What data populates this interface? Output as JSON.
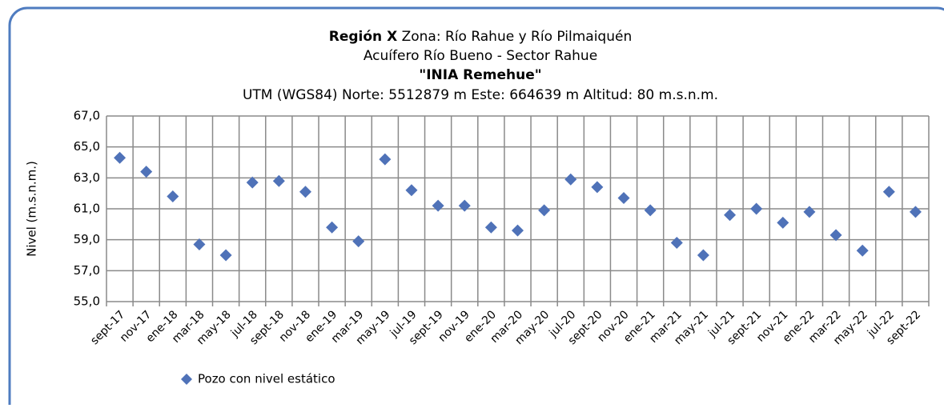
{
  "chart_data": {
    "type": "scatter",
    "title_prefix": "Región X",
    "title": "Zona: Río Rahue y Río Pilmaiquén",
    "subtitle": "Acuífero Río Bueno - Sector Rahue",
    "well_name": "\"INIA Remehue\"",
    "location": "UTM (WGS84) Norte: 5512879 m Este: 664639 m  Altitud: 80 m.s.n.m.",
    "y_label": "Nivel (m.s.n.m.)",
    "categories": [
      "sept-17",
      "nov-17",
      "ene-18",
      "mar-18",
      "may-18",
      "jul-18",
      "sept-18",
      "nov-18",
      "ene-19",
      "mar-19",
      "may-19",
      "jul-19",
      "sept-19",
      "nov-19",
      "ene-20",
      "mar-20",
      "may-20",
      "jul-20",
      "sept-20",
      "nov-20",
      "ene-21",
      "mar-21",
      "may-21",
      "jul-21",
      "sept-21",
      "nov-21",
      "ene-22",
      "mar-22",
      "may-22",
      "jul-22",
      "sept-22"
    ],
    "series": [
      {
        "name": "Pozo con nivel estático",
        "color": "#4f72b8",
        "values": [
          64.3,
          63.4,
          61.8,
          58.7,
          58.0,
          62.7,
          62.8,
          62.1,
          59.8,
          58.9,
          64.2,
          62.2,
          61.2,
          61.2,
          59.8,
          59.6,
          60.9,
          62.9,
          62.4,
          61.7,
          60.9,
          58.8,
          58.0,
          60.6,
          61.0,
          60.1,
          60.8,
          59.3,
          58.3,
          62.1,
          60.8
        ]
      }
    ],
    "ylim": [
      55,
      67
    ],
    "yticks": [
      {
        "value": 55,
        "label": "55,0"
      },
      {
        "value": 57,
        "label": "57,0"
      },
      {
        "value": 59,
        "label": "59,0"
      },
      {
        "value": 61,
        "label": "61,0"
      },
      {
        "value": 63,
        "label": "63,0"
      },
      {
        "value": 65,
        "label": "65,0"
      },
      {
        "value": 67,
        "label": "67,0"
      }
    ],
    "grid": true
  }
}
